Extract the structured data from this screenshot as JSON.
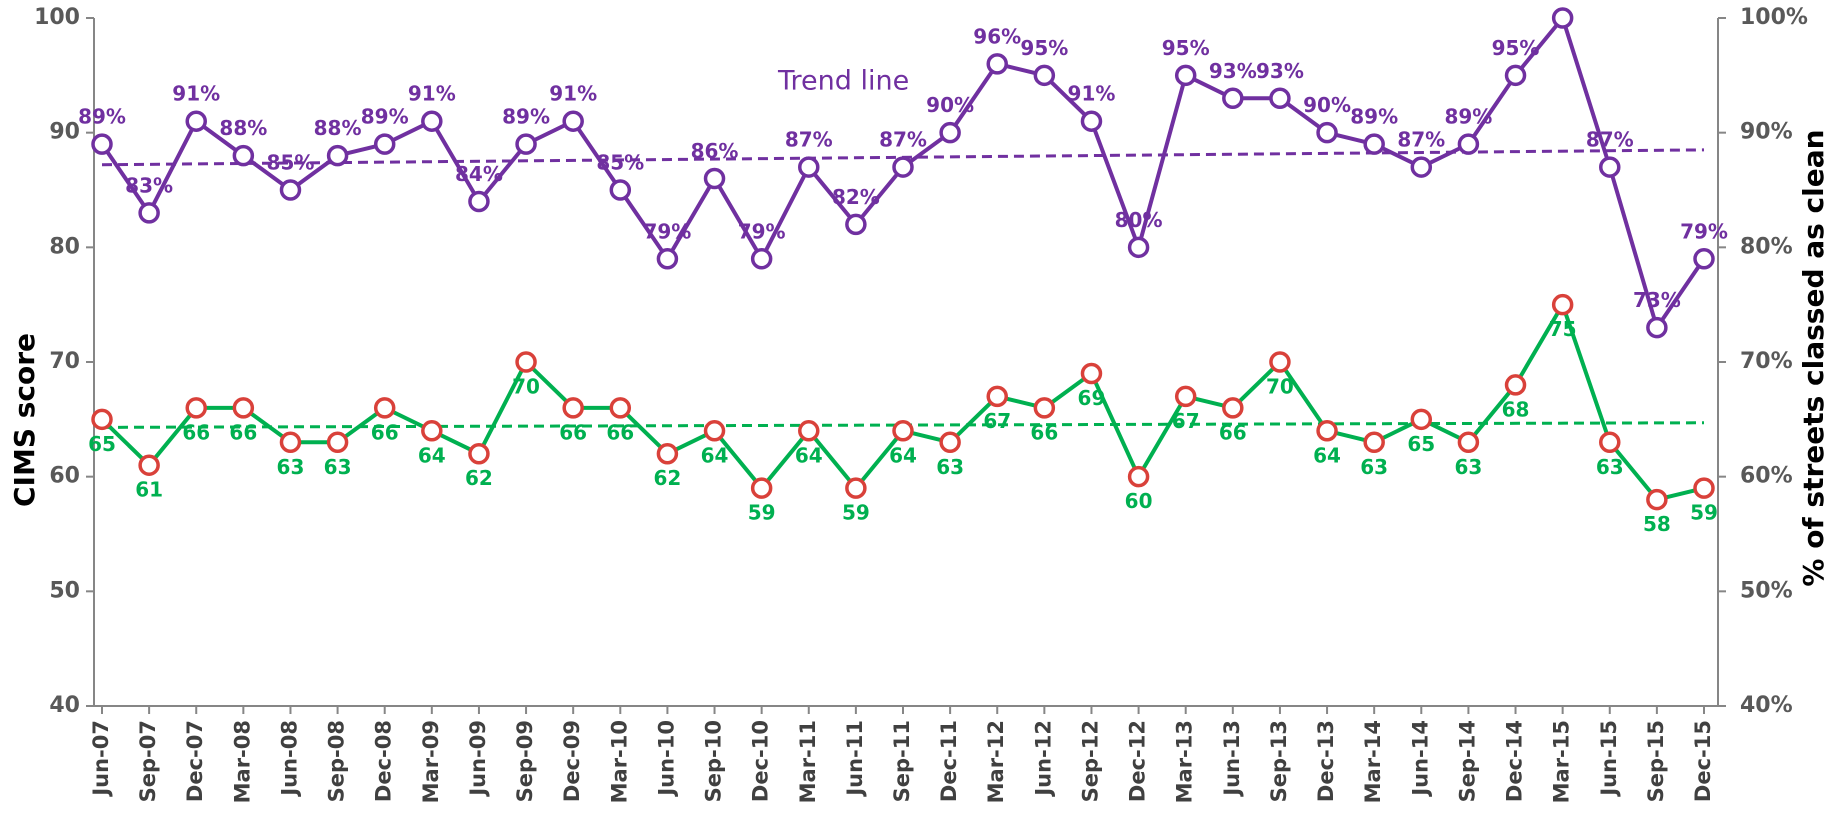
{
  "chart_data": {
    "type": "line",
    "y_label": "CIMS score",
    "y2_label": "% of streets classed as clean",
    "annotation": "Trend line",
    "categories": [
      "Jun-07",
      "Sep-07",
      "Dec-07",
      "Mar-08",
      "Jun-08",
      "Sep-08",
      "Dec-08",
      "Mar-09",
      "Jun-09",
      "Sep-09",
      "Dec-09",
      "Mar-10",
      "Jun-10",
      "Sep-10",
      "Dec-10",
      "Mar-11",
      "Jun-11",
      "Sep-11",
      "Dec-11",
      "Mar-12",
      "Jun-12",
      "Sep-12",
      "Dec-12",
      "Mar-13",
      "Jun-13",
      "Sep-13",
      "Dec-13",
      "Mar-14",
      "Jun-14",
      "Sep-14",
      "Dec-14",
      "Mar-15",
      "Jun-15",
      "Sep-15",
      "Dec-15"
    ],
    "ylim": [
      40,
      100
    ],
    "yticks": [
      40,
      50,
      60,
      70,
      80,
      90,
      100
    ],
    "y2lim": [
      40,
      100
    ],
    "y2ticks": [
      {
        "value": 40,
        "label": "40%"
      },
      {
        "value": 50,
        "label": "50%"
      },
      {
        "value": 60,
        "label": "60%"
      },
      {
        "value": 70,
        "label": "70%"
      },
      {
        "value": 80,
        "label": "80%"
      },
      {
        "value": 90,
        "label": "90%"
      },
      {
        "value": 100,
        "label": "100%"
      }
    ],
    "series": [
      {
        "color": "#7030a0",
        "marker_edge": "#7030a0",
        "axis": "y2",
        "label_side": "above",
        "values": [
          89,
          83,
          91,
          88,
          85,
          88,
          89,
          91,
          84,
          89,
          91,
          85,
          79,
          86,
          79,
          87,
          82,
          87,
          90,
          96,
          95,
          91,
          80,
          95,
          93,
          93,
          90,
          89,
          87,
          89,
          95,
          100,
          87,
          73,
          79
        ],
        "value_labels": [
          "89%",
          "83%",
          "91%",
          "88%",
          "85%",
          "88%",
          "89%",
          "91%",
          "84%",
          "89%",
          "91%",
          "85%",
          "79%",
          "86%",
          "79%",
          "87%",
          "82%",
          "87%",
          "90%",
          "96%",
          "95%",
          "91%",
          "80%",
          "95%",
          "93%",
          "93%",
          "90%",
          "89%",
          "87%",
          "89%",
          "95%",
          null,
          "87%",
          "73%",
          "79%"
        ],
        "trend": [
          87.2,
          88.5
        ]
      },
      {
        "color": "#00b050",
        "marker_edge": "#d9413a",
        "axis": "y",
        "label_side": "below",
        "values": [
          65,
          61,
          66,
          66,
          63,
          63,
          66,
          64,
          62,
          70,
          66,
          66,
          62,
          64,
          59,
          64,
          59,
          64,
          63,
          67,
          66,
          69,
          60,
          67,
          66,
          70,
          64,
          63,
          65,
          63,
          68,
          75,
          63,
          58,
          59
        ],
        "trend": [
          64.3,
          64.7
        ]
      }
    ]
  }
}
